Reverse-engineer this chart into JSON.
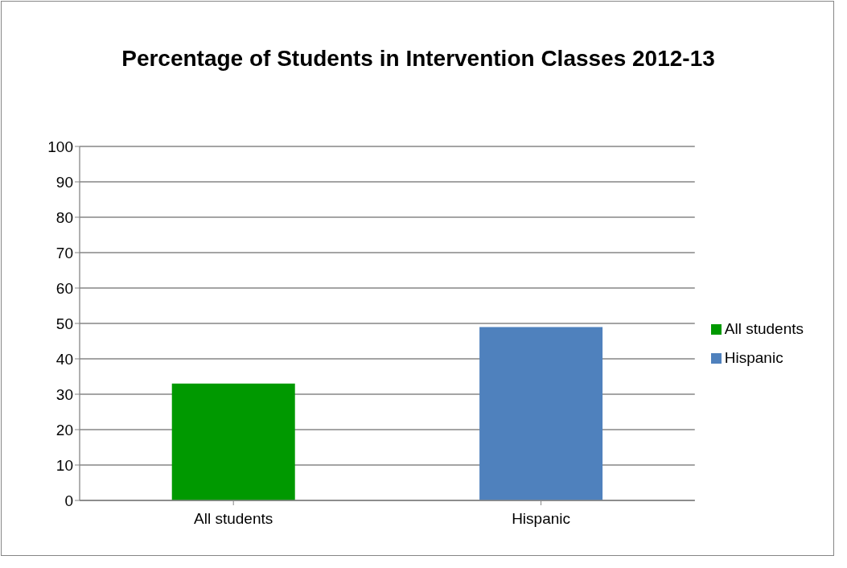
{
  "chart_data": {
    "type": "bar",
    "title": "Percentage of Students in Intervention Classes 2012-13",
    "categories": [
      "All students",
      "Hispanic"
    ],
    "series": [
      {
        "name": "All students",
        "color": "#009900",
        "values": [
          33,
          null
        ]
      },
      {
        "name": "Hispanic",
        "color": "#4f81bd",
        "values": [
          null,
          49
        ]
      }
    ],
    "ylim": [
      0,
      100
    ],
    "yticks": [
      0,
      10,
      20,
      30,
      40,
      50,
      60,
      70,
      80,
      90,
      100
    ],
    "grid": "y",
    "legend": "right"
  }
}
